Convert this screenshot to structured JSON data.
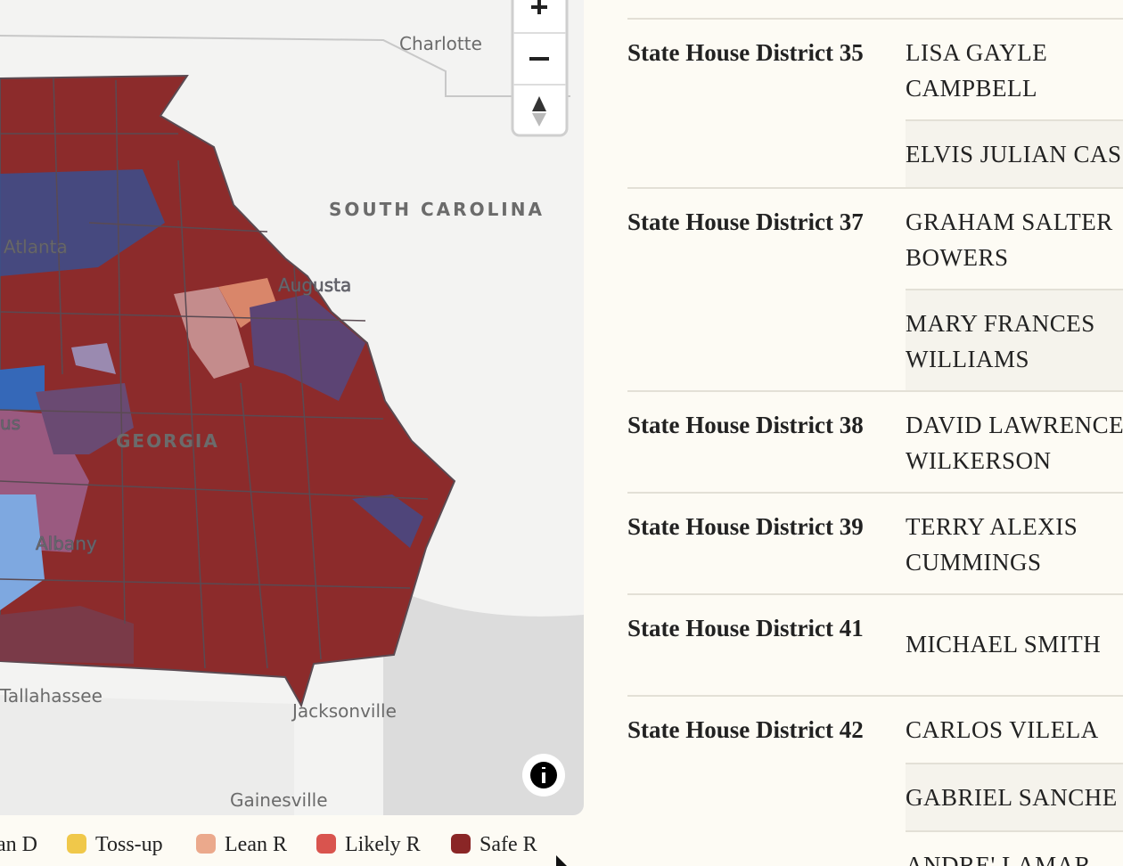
{
  "map": {
    "labels": [
      {
        "text": "Charlotte"
      },
      {
        "text": "SOUTH CAROLINA"
      },
      {
        "text": "Atlanta"
      },
      {
        "text": "Augusta"
      },
      {
        "text": "GEORGIA"
      },
      {
        "text": "us"
      },
      {
        "text": "Albany"
      },
      {
        "text": "Tallahassee"
      },
      {
        "text": "Jacksonville"
      },
      {
        "text": "Gainesville"
      }
    ]
  },
  "legend": [
    {
      "label": "an D",
      "color": null
    },
    {
      "label": "Toss-up",
      "color": "#f0c84a"
    },
    {
      "label": "Lean R",
      "color": "#eba98c"
    },
    {
      "label": "Likely R",
      "color": "#d9544e"
    },
    {
      "label": "Safe R",
      "color": "#8a2626"
    }
  ],
  "table": {
    "rows": [
      {
        "district": "State House District 35",
        "candidates": [
          "LISA GAYLE CAMPBELL",
          "ELVIS JULIAN CAS"
        ]
      },
      {
        "district": "State House District 37",
        "candidates": [
          "GRAHAM SALTER BOWERS",
          "MARY FRANCES WILLIAMS"
        ]
      },
      {
        "district": "State House District 38",
        "candidates": [
          "DAVID LAWRENCE WILKERSON"
        ]
      },
      {
        "district": "State House District 39",
        "candidates": [
          "TERRY ALEXIS CUMMINGS"
        ]
      },
      {
        "district": "State House District 41",
        "candidates": [
          "MICHAEL SMITH"
        ]
      },
      {
        "district": "State House District 42",
        "candidates": [
          "CARLOS VILELA",
          "GABRIEL SANCHE",
          "ANDRE' LAMAR"
        ]
      }
    ]
  }
}
